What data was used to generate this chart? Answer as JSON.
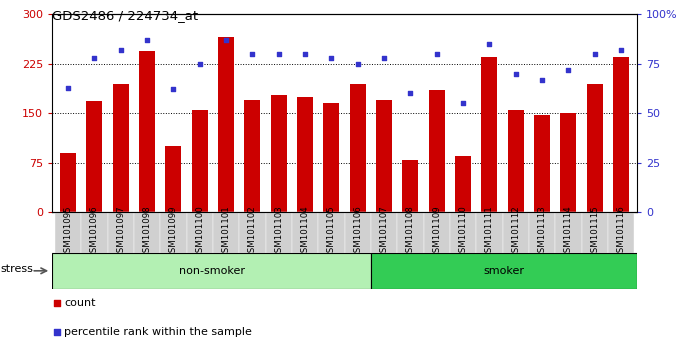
{
  "title": "GDS2486 / 224734_at",
  "categories": [
    "GSM101095",
    "GSM101096",
    "GSM101097",
    "GSM101098",
    "GSM101099",
    "GSM101100",
    "GSM101101",
    "GSM101102",
    "GSM101103",
    "GSM101104",
    "GSM101105",
    "GSM101106",
    "GSM101107",
    "GSM101108",
    "GSM101109",
    "GSM101110",
    "GSM101111",
    "GSM101112",
    "GSM101113",
    "GSM101114",
    "GSM101115",
    "GSM101116"
  ],
  "bar_values": [
    90,
    168,
    195,
    245,
    100,
    155,
    265,
    170,
    178,
    175,
    165,
    195,
    170,
    80,
    185,
    85,
    235,
    155,
    148,
    150,
    195,
    235
  ],
  "dot_values": [
    63,
    78,
    82,
    87,
    62,
    75,
    87,
    80,
    80,
    80,
    78,
    75,
    78,
    60,
    80,
    55,
    85,
    70,
    67,
    72,
    80,
    82
  ],
  "bar_color": "#cc0000",
  "dot_color": "#3333cc",
  "left_ylim": [
    0,
    300
  ],
  "right_ylim": [
    0,
    100
  ],
  "left_yticks": [
    0,
    75,
    150,
    225,
    300
  ],
  "right_yticks": [
    0,
    25,
    50,
    75,
    100
  ],
  "right_yticklabels": [
    "0",
    "25",
    "50",
    "75",
    "100%"
  ],
  "hlines": [
    75,
    150,
    225
  ],
  "non_smoker_label": "non-smoker",
  "smoker_label": "smoker",
  "stress_label": "stress",
  "non_smoker_color": "#b3f0b3",
  "smoker_color": "#33cc55",
  "bar_bg_color": "#d0d0d0",
  "legend_count": "count",
  "legend_percentile": "percentile rank within the sample"
}
